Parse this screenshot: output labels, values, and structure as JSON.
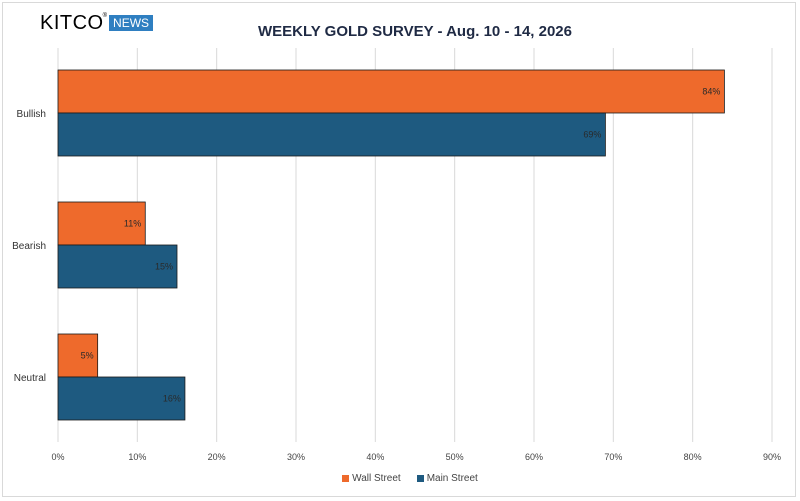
{
  "brand": {
    "name": "KITCO",
    "reg": "®",
    "tag": "NEWS"
  },
  "colors": {
    "wall_street": "#ee6a2c",
    "main_street": "#1e5a80",
    "grid": "#d9d9d9"
  },
  "chart_data": {
    "type": "bar",
    "orientation": "horizontal",
    "title": "WEEKLY GOLD SURVEY - Aug. 10 - 14, 2026",
    "categories": [
      "Bullish",
      "Bearish",
      "Neutral"
    ],
    "series": [
      {
        "name": "Wall Street",
        "values": [
          84,
          11,
          5
        ],
        "labels": [
          "84%",
          "11%",
          "5%"
        ]
      },
      {
        "name": "Main Street",
        "values": [
          69,
          15,
          16
        ],
        "labels": [
          "69%",
          "15%",
          "16%"
        ]
      }
    ],
    "xlim": [
      0,
      90
    ],
    "xticks": [
      "0%",
      "10%",
      "20%",
      "30%",
      "40%",
      "50%",
      "60%",
      "70%",
      "80%",
      "90%"
    ],
    "grid": true,
    "legend": "bottom"
  }
}
